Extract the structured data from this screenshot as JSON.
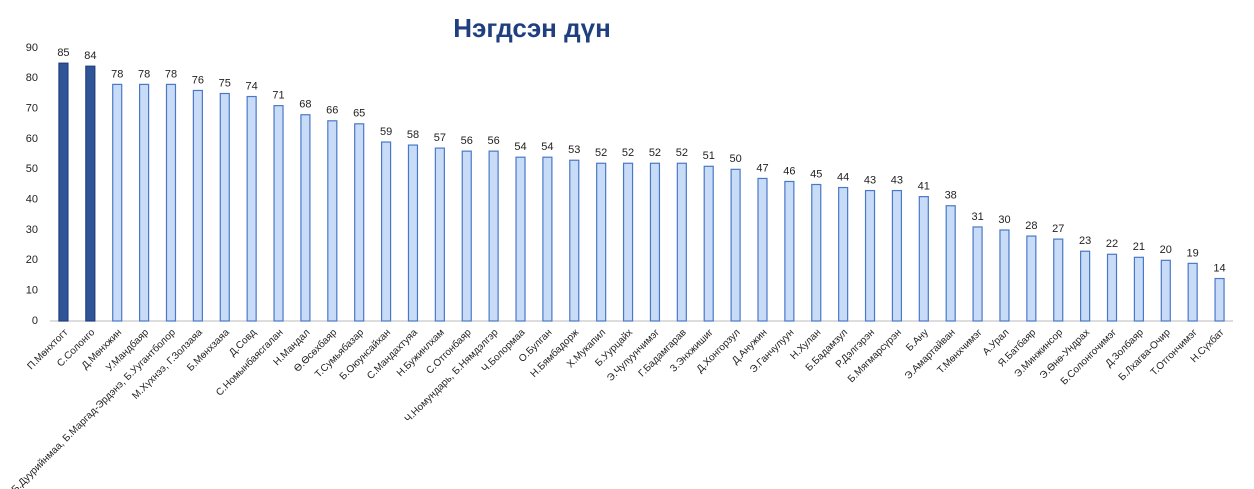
{
  "chart_data": {
    "type": "bar",
    "title": "Нэгдсэн дүн",
    "categories": [
      "П.Мөнхтогт",
      "С.Солонго",
      "Д.Мөнхжин",
      "У.Мандбаяр",
      "Б.Дуурийнмаа, Б.Маргад-Эрдэнэ, Б.Уугантболор",
      "М.Хүхнээ, Г.Золзаяа",
      "Б.Мөнхзаяа",
      "Д.Совд",
      "С.Номынбаясгалан",
      "Н.Мандал",
      "Ө.Өсөхбаяр",
      "Т.Сумьябазар",
      "Б.Оюунсайхан",
      "С.Мандахтуяа",
      "Н.Бужинлхам",
      "С.Отгонбаяр",
      "Ч.Номундарь, Б.Нямдэлгэр",
      "Ч.Болормаа",
      "О.Булган",
      "Н.Бямбадорж",
      "Х.Мукапил",
      "Б.Уурцайх",
      "Э.Чулуунчимэг",
      "Г.Бадамгарав",
      "З.Энхжишиг",
      "Д.Хонгорзул",
      "Д.Анужин",
      "Э.Ганчулуун",
      "Н.Хулан",
      "Б.Бадамзул",
      "Р.Дэлгэрэн",
      "Б.Мягмарсүрэн",
      "Б.Ану",
      "Э.Амартайван",
      "Т.Мөнхчимэг",
      "А.Урал",
      "Я.Батбаяр",
      "Э.Минжинсор",
      "Э.Өнө-Ундрах",
      "Б.Солонгочимэг",
      "Д.Золбаяр",
      "Б.Лхагва-Очир",
      "Т.Отгончимэг",
      "Н.Сүхбат"
    ],
    "values": [
      85,
      84,
      78,
      78,
      78,
      76,
      75,
      74,
      71,
      68,
      66,
      65,
      59,
      58,
      57,
      56,
      56,
      54,
      54,
      53,
      52,
      52,
      52,
      52,
      51,
      50,
      47,
      46,
      45,
      44,
      43,
      43,
      41,
      38,
      31,
      30,
      28,
      27,
      23,
      22,
      21,
      20,
      19,
      14
    ],
    "colors": [
      "#2f5597",
      "#2f5597",
      "#c9dcf7",
      "#c9dcf7",
      "#c9dcf7",
      "#c9dcf7",
      "#c9dcf7",
      "#c9dcf7",
      "#c9dcf7",
      "#c9dcf7",
      "#c9dcf7",
      "#c9dcf7",
      "#c9dcf7",
      "#c9dcf7",
      "#c9dcf7",
      "#c9dcf7",
      "#c9dcf7",
      "#c9dcf7",
      "#c9dcf7",
      "#c9dcf7",
      "#c9dcf7",
      "#c9dcf7",
      "#c9dcf7",
      "#c9dcf7",
      "#c9dcf7",
      "#c9dcf7",
      "#c9dcf7",
      "#c9dcf7",
      "#c9dcf7",
      "#c9dcf7",
      "#c9dcf7",
      "#c9dcf7",
      "#c9dcf7",
      "#c9dcf7",
      "#c9dcf7",
      "#c9dcf7",
      "#c9dcf7",
      "#c9dcf7",
      "#c9dcf7",
      "#c9dcf7",
      "#c9dcf7",
      "#c9dcf7",
      "#c9dcf7",
      "#c9dcf7"
    ],
    "ylim": [
      0,
      90
    ],
    "yticks": [
      0,
      10,
      20,
      30,
      40,
      50,
      60,
      70,
      80,
      90
    ],
    "grid": false
  }
}
